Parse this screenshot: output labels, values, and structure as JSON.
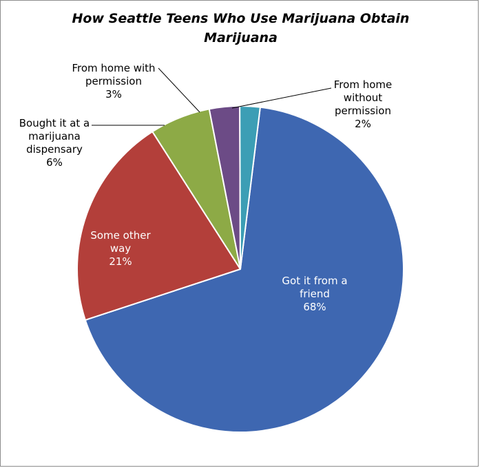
{
  "chart_data": {
    "type": "pie",
    "title": "How Seattle Teens Who Use Marijuana Obtain Marijuana",
    "slices": [
      {
        "label": "Got it from a friend",
        "value": 68,
        "value_label": "68%",
        "label_lines": [
          "Got it from a",
          "friend",
          "68%"
        ],
        "color": "#3E67B1"
      },
      {
        "label": "Some other way",
        "value": 21,
        "value_label": "21%",
        "label_lines": [
          "Some other",
          "way",
          "21%"
        ],
        "color": "#B33F3A"
      },
      {
        "label": "Bought it at a marijuana dispensary",
        "value": 6,
        "value_label": "6%",
        "label_lines": [
          "Bought it at a",
          "marijuana",
          "dispensary",
          "6%"
        ],
        "color": "#8DAA46"
      },
      {
        "label": "From home with permission",
        "value": 3,
        "value_label": "3%",
        "label_lines": [
          "From home with",
          "permission",
          "3%"
        ],
        "color": "#6C4B86"
      },
      {
        "label": "From home without permission",
        "value": 2,
        "value_label": "2%",
        "label_lines": [
          "From home",
          "without",
          "permission",
          "2%"
        ],
        "color": "#3C9EB5"
      }
    ]
  }
}
